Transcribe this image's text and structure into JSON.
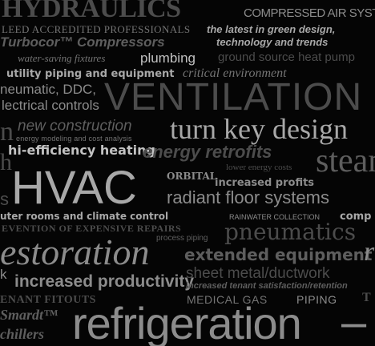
{
  "word_cloud": {
    "hydraulics": "HYDRAULICS",
    "compressed_air": "COMPRESSED AIR SYSTEM",
    "leed": "LEED ACCREDITED PROFESSIONALS",
    "green_design": "the latest in green design,",
    "turbocor": "Turbocor™ Compressors",
    "tech_trends": "technology and trends",
    "water_saving": "water-saving fixtures",
    "plumbing": "plumbing",
    "ground_source": "ground source heat pump",
    "utility": "utility piping and equipment",
    "critical": "critical environment",
    "pneumatic_ddc": "neumatic, DDC,",
    "ventilation": "VENTILATION",
    "electrical": "lectrical controls",
    "n": "n",
    "new_construction": "new construction",
    "turn_key": "turn key design",
    "energy_modeling": "energy modeling and cost analysis",
    "hi_efficiency": "hi-efficiency heating",
    "energy_retrofits": "energy retrofits",
    "lower_energy": "lower energy costs",
    "steam": "steam",
    "h": "h",
    "hvac": "HVAC",
    "orbital": "ORBITAL",
    "increased_profits": "increased profits",
    "radiant": "radiant floor systems",
    "s": "s",
    "computer_rooms": "uter rooms and climate control",
    "rainwater": "RAINWATER COLLECTION",
    "comp": "comp",
    "prevention": "EVENTION OF EXPENSIVE REPAIRS",
    "pneumatics": "pneumatics",
    "process_piping": "process piping",
    "restoration": "estoration",
    "extended": "extended equipment life",
    "r": "r",
    "k": "k",
    "increased_productivity": "increased productivity",
    "sheet_metal": "sheet metal/ductwork",
    "tenant_satisfaction": "increased tenant satisfaction/retention",
    "tenant_fitouts": "ENANT FITOUTS",
    "medical_gas": "MEDICAL GAS",
    "piping": "PIPING",
    "t": "T",
    "smardt": "Smardt™",
    "chillers": "chillers",
    "refrigeration": "refrigeration",
    "dash": "–"
  }
}
